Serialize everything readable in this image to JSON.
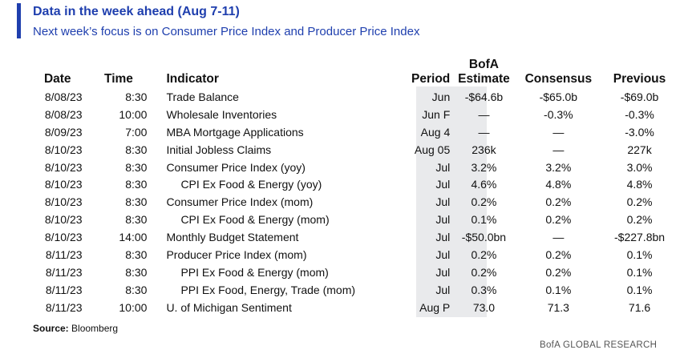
{
  "header": {
    "title": "Data in the week ahead (Aug 7-11)",
    "subtitle": "Next week’s focus is on Consumer Price Index and Producer Price Index"
  },
  "table": {
    "columns": {
      "date": "Date",
      "time": "Time",
      "indicator": "Indicator",
      "period": "Period",
      "estimate_line1": "BofA",
      "estimate_line2": "Estimate",
      "consensus": "Consensus",
      "previous": "Previous"
    },
    "rows": [
      {
        "date": "8/08/23",
        "time": "8:30",
        "indicator": "Trade Balance",
        "period": "Jun",
        "estimate": "-$64.6b",
        "consensus": "-$65.0b",
        "previous": "-$69.0b",
        "indent": false
      },
      {
        "date": "8/08/23",
        "time": "10:00",
        "indicator": "Wholesale Inventories",
        "period": "Jun F",
        "estimate": "—",
        "consensus": "-0.3%",
        "previous": "-0.3%",
        "indent": false
      },
      {
        "date": "8/09/23",
        "time": "7:00",
        "indicator": "MBA Mortgage Applications",
        "period": "Aug 4",
        "estimate": "—",
        "consensus": "—",
        "previous": "-3.0%",
        "indent": false
      },
      {
        "date": "8/10/23",
        "time": "8:30",
        "indicator": "Initial Jobless Claims",
        "period": "Aug 05",
        "estimate": "236k",
        "consensus": "—",
        "previous": "227k",
        "indent": false
      },
      {
        "date": "8/10/23",
        "time": "8:30",
        "indicator": "Consumer Price Index (yoy)",
        "period": "Jul",
        "estimate": "3.2%",
        "consensus": "3.2%",
        "previous": "3.0%",
        "indent": false
      },
      {
        "date": "8/10/23",
        "time": "8:30",
        "indicator": "CPI Ex Food & Energy (yoy)",
        "period": "Jul",
        "estimate": "4.6%",
        "consensus": "4.8%",
        "previous": "4.8%",
        "indent": true
      },
      {
        "date": "8/10/23",
        "time": "8:30",
        "indicator": "Consumer Price Index (mom)",
        "period": "Jul",
        "estimate": "0.2%",
        "consensus": "0.2%",
        "previous": "0.2%",
        "indent": false
      },
      {
        "date": "8/10/23",
        "time": "8:30",
        "indicator": "CPI Ex Food & Energy (mom)",
        "period": "Jul",
        "estimate": "0.1%",
        "consensus": "0.2%",
        "previous": "0.2%",
        "indent": true
      },
      {
        "date": "8/10/23",
        "time": "14:00",
        "indicator": "Monthly Budget Statement",
        "period": "Jul",
        "estimate": "-$50.0bn",
        "consensus": "—",
        "previous": "-$227.8bn",
        "indent": false
      },
      {
        "date": "8/11/23",
        "time": "8:30",
        "indicator": "Producer Price Index (mom)",
        "period": "Jul",
        "estimate": "0.2%",
        "consensus": "0.2%",
        "previous": "0.1%",
        "indent": false
      },
      {
        "date": "8/11/23",
        "time": "8:30",
        "indicator": "PPI Ex Food & Energy (mom)",
        "period": "Jul",
        "estimate": "0.2%",
        "consensus": "0.2%",
        "previous": "0.1%",
        "indent": true
      },
      {
        "date": "8/11/23",
        "time": "8:30",
        "indicator": "PPI Ex Food, Energy, Trade (mom)",
        "period": "Jul",
        "estimate": "0.3%",
        "consensus": "0.1%",
        "previous": "0.1%",
        "indent": true
      },
      {
        "date": "8/11/23",
        "time": "10:00",
        "indicator": "U. of Michigan Sentiment",
        "period": "Aug P",
        "estimate": "73.0",
        "consensus": "71.3",
        "previous": "71.6",
        "indent": false
      }
    ]
  },
  "footer": {
    "source_label": "Source:",
    "source_value": "Bloomberg",
    "brand": "BofA GLOBAL RESEARCH"
  },
  "colors": {
    "accent": "#1f3fae",
    "estimate_shade": "#e9eaec"
  }
}
